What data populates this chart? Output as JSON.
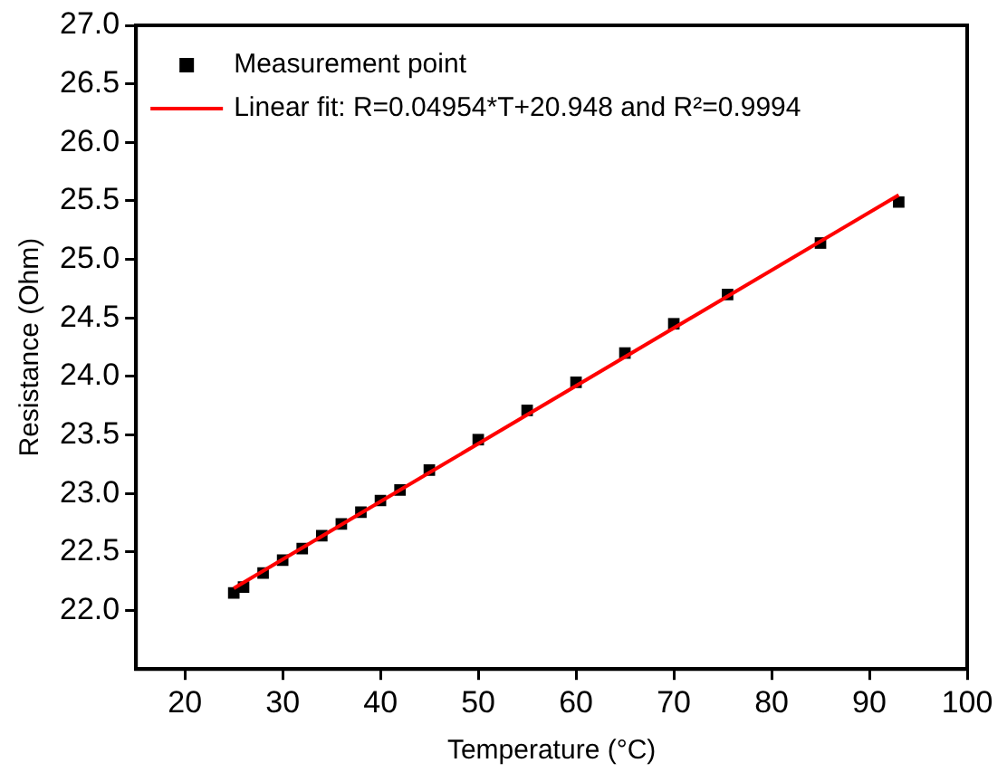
{
  "chart_data": {
    "type": "scatter",
    "xlabel": "Temperature (°C)",
    "ylabel": "Resistance (Ohm)",
    "xlim": [
      15,
      100
    ],
    "xticks": [
      20,
      30,
      40,
      50,
      60,
      70,
      80,
      90,
      100
    ],
    "ylim": [
      21.5,
      27.0
    ],
    "yticks": [
      {
        "value": 22,
        "label": "22.0"
      },
      {
        "value": 22.5,
        "label": "22.5"
      },
      {
        "value": 23,
        "label": "23.0"
      },
      {
        "value": 23.5,
        "label": "23.5"
      },
      {
        "value": 24,
        "label": "24.0"
      },
      {
        "value": 24.5,
        "label": "24.5"
      },
      {
        "value": 25,
        "label": "25.0"
      },
      {
        "value": 25.5,
        "label": "25.5"
      },
      {
        "value": 26,
        "label": "26.0"
      },
      {
        "value": 26.5,
        "label": "26.5"
      },
      {
        "value": 27,
        "label": "27.0"
      }
    ],
    "grid": false,
    "legend": "top left",
    "series": [
      {
        "name": "Measurement point",
        "color": "#000000",
        "marker": "square",
        "x": [
          25,
          26,
          28,
          30,
          32,
          34,
          36,
          38,
          40,
          42,
          45,
          50,
          55,
          60,
          65,
          70,
          75.5,
          85,
          93
        ],
        "values": [
          22.15,
          22.2,
          22.32,
          22.43,
          22.53,
          22.64,
          22.74,
          22.84,
          22.94,
          23.03,
          23.2,
          23.46,
          23.71,
          23.95,
          24.2,
          24.45,
          24.7,
          25.14,
          25.49
        ]
      },
      {
        "name": "Linear fit: R=0.04954*T+20.948 and R²=0.9994",
        "type": "line",
        "color": "#ff0000",
        "marker": "none",
        "line_style": "solid",
        "x": [
          25,
          93
        ],
        "values": [
          22.19,
          25.55
        ]
      }
    ]
  }
}
